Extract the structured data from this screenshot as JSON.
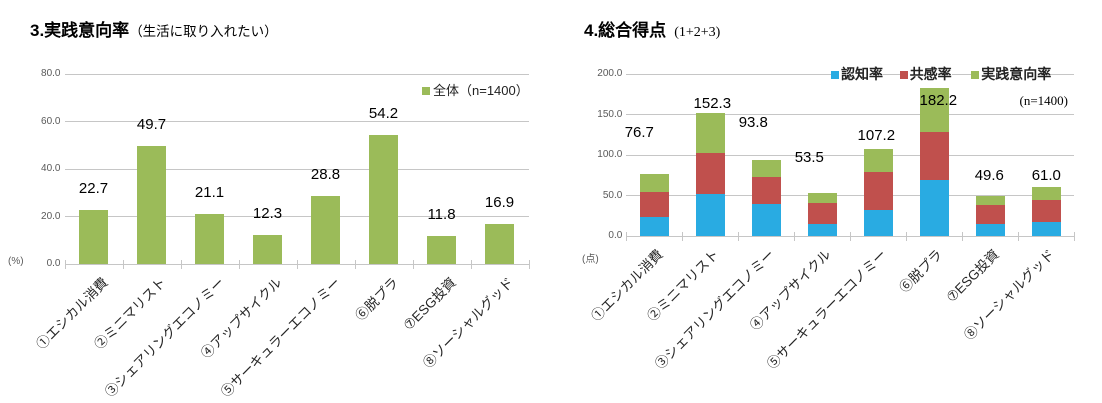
{
  "chart_data": [
    {
      "type": "bar",
      "title": "3.実践意向率",
      "title_note": "（生活に取り入れたい）",
      "categories": [
        "①エシカル消費",
        "②ミニマリスト",
        "③シェアリングエコノミー",
        "④アップサイクル",
        "⑤サーキュラーエコノミー",
        "⑥脱プラ",
        "⑦ESG投資",
        "⑧ソーシャルグッド"
      ],
      "values": [
        22.7,
        49.7,
        21.1,
        12.3,
        28.8,
        54.2,
        11.8,
        16.9
      ],
      "legend": [
        {
          "label": "全体（n=1400）",
          "color": "#9bbb59"
        }
      ],
      "bar_color": "#9bbb59",
      "ylabel": "(%)",
      "ylim": [
        0,
        80
      ],
      "ytick_labels": [
        "0.0",
        "20.0",
        "40.0",
        "60.0",
        "80.0"
      ],
      "grid": true,
      "legend_position": "top-right"
    },
    {
      "type": "stacked-bar",
      "title": "4.総合得点",
      "title_note": "(1+2+3)",
      "categories": [
        "①エシカル消費",
        "②ミニマリスト",
        "③シェアリングエコノミー",
        "④アップサイクル",
        "⑤サーキュラーエコノミー",
        "⑥脱プラ",
        "⑦ESG投資",
        "⑧ソーシャルグッド"
      ],
      "series": [
        {
          "name": "認知率",
          "color": "#29abe2",
          "values": [
            23.0,
            52.0,
            39.0,
            15.3,
            32.0,
            69.0,
            14.5,
            17.0
          ]
        },
        {
          "name": "共感率",
          "color": "#c0504d",
          "values": [
            31.0,
            50.6,
            33.7,
            25.9,
            46.4,
            59.0,
            23.3,
            27.1
          ]
        },
        {
          "name": "実践意向率",
          "color": "#9bbb59",
          "values": [
            22.7,
            49.7,
            21.1,
            12.3,
            28.8,
            54.2,
            11.8,
            16.9
          ]
        }
      ],
      "totals": [
        76.7,
        152.3,
        93.8,
        53.5,
        107.2,
        182.2,
        49.6,
        61.0
      ],
      "sample_note": "(n=1400)",
      "ylabel": "(点)",
      "ylim": [
        0,
        200
      ],
      "ytick_labels": [
        "0.0",
        "50.0",
        "100.0",
        "150.0",
        "200.0"
      ],
      "grid": true,
      "legend_position": "top"
    }
  ]
}
